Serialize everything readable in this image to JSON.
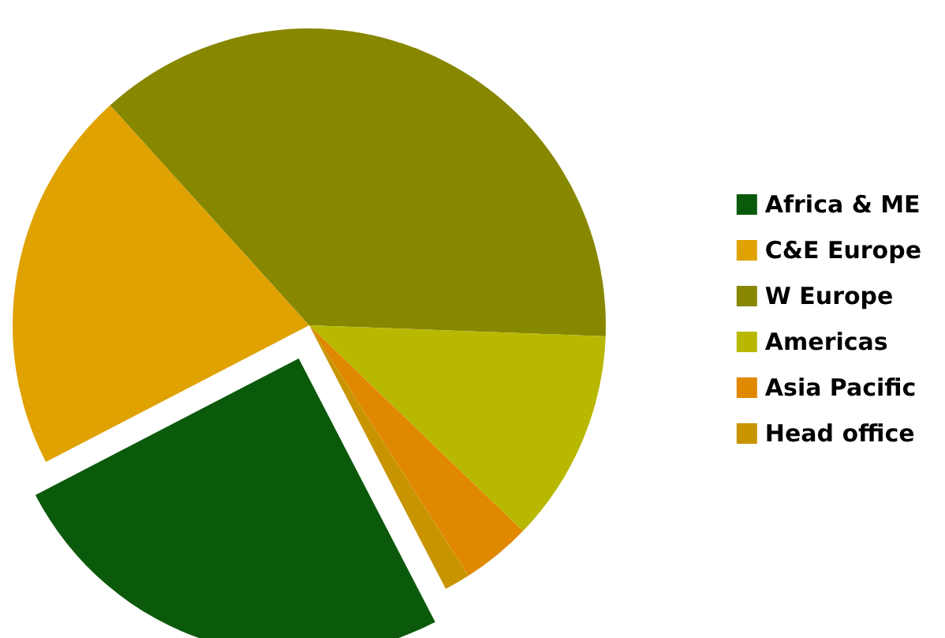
{
  "chart_data": {
    "type": "pie",
    "categories": [
      "Africa & ME",
      "C&E Europe",
      "W Europe",
      "Americas",
      "Asia Pacific",
      "Head office"
    ],
    "values": [
      25,
      20.9,
      37.3,
      11.6,
      3.8,
      1.4
    ],
    "colors": [
      "#0b5a0b",
      "#e0a200",
      "#878700",
      "#b8b800",
      "#e08800",
      "#c89400"
    ],
    "legend": "right"
  }
}
